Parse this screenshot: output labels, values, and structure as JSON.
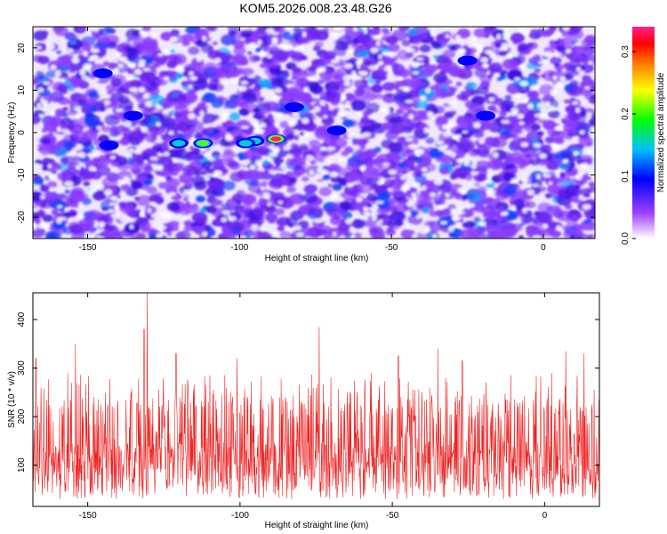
{
  "title": "KOM5.2026.008.23.48.G26",
  "colors": {
    "trace": "#ee2222",
    "axis": "#000000",
    "background": "#ffffff"
  },
  "chart_data": [
    {
      "type": "heatmap",
      "xlabel": "Height of straight line (km)",
      "ylabel": "Frequency (Hz)",
      "xlim": [
        -168,
        17
      ],
      "ylim": [
        -25,
        25
      ],
      "xticks": [
        -150,
        -100,
        -50,
        0
      ],
      "yticks": [
        -20,
        -10,
        0,
        10,
        20
      ],
      "xtick_labels": [
        "-150",
        "-100",
        "-50",
        "0"
      ],
      "ytick_labels": [
        "-20",
        "-10",
        "0",
        "10",
        "20"
      ],
      "colorbar": {
        "label": "Normalized spectral amplitude",
        "range": [
          0,
          0.34
        ],
        "ticks": [
          0,
          0.1,
          0.2,
          0.3
        ],
        "tick_labels": [
          "0.0",
          "0.1",
          "0.2",
          "0.3"
        ],
        "colormap": [
          "#ffffff",
          "#a040ff",
          "#0000ff",
          "#00c0ff",
          "#00ff00",
          "#ffff00",
          "#ff8000",
          "#ff0000",
          "#ff2090"
        ]
      },
      "peaks": [
        {
          "x": -88,
          "y": -1.5,
          "value": 0.34
        },
        {
          "x": -112,
          "y": -2.5,
          "value": 0.22
        },
        {
          "x": -120,
          "y": -2.5,
          "value": 0.17
        },
        {
          "x": -95,
          "y": -2,
          "value": 0.15
        },
        {
          "x": -98,
          "y": -2.5,
          "value": 0.14
        },
        {
          "x": -143,
          "y": -3,
          "value": 0.12
        },
        {
          "x": -68,
          "y": 0.5,
          "value": 0.11
        },
        {
          "x": -82,
          "y": 6,
          "value": 0.1
        },
        {
          "x": -135,
          "y": 4,
          "value": 0.09
        },
        {
          "x": -145,
          "y": 14,
          "value": 0.09
        },
        {
          "x": -25,
          "y": 17,
          "value": 0.09
        },
        {
          "x": -19,
          "y": 4,
          "value": 0.09
        },
        {
          "x": -124,
          "y": -11,
          "value": 0.08
        },
        {
          "x": -107,
          "y": 8,
          "value": 0.08
        }
      ]
    },
    {
      "type": "line",
      "xlabel": "Height of straight line (km)",
      "ylabel": "SNR (10 * v/v)",
      "xlim": [
        -168,
        18
      ],
      "ylim": [
        15,
        455
      ],
      "xticks": [
        -150,
        -100,
        -50,
        0
      ],
      "yticks": [
        100,
        200,
        300,
        400
      ],
      "xtick_labels": [
        "-150",
        "-100",
        "-50",
        "0"
      ],
      "ytick_labels": [
        "100",
        "200",
        "300",
        "400"
      ],
      "typical_range": [
        40,
        240
      ],
      "mean": 110,
      "spikes": [
        {
          "x": -130.5,
          "value": 455
        },
        {
          "x": -131.5,
          "value": 380
        },
        {
          "x": -74,
          "value": 385
        },
        {
          "x": -154,
          "value": 350
        },
        {
          "x": -167,
          "value": 320
        },
        {
          "x": -121,
          "value": 330
        },
        {
          "x": -35,
          "value": 340
        },
        {
          "x": -48,
          "value": 325
        },
        {
          "x": 7,
          "value": 335
        },
        {
          "x": 13,
          "value": 330
        },
        {
          "x": -101,
          "value": 320
        },
        {
          "x": -27,
          "value": 315
        }
      ]
    }
  ]
}
